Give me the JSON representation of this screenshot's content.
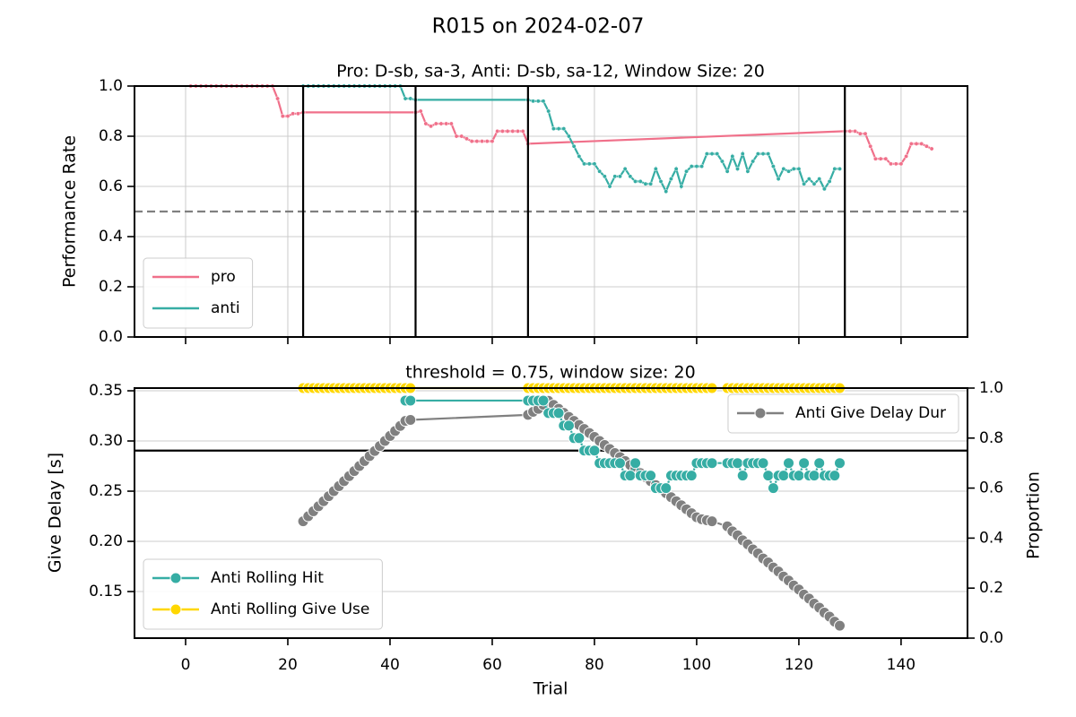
{
  "title": "R015 on 2024-02-07",
  "chart_data": [
    {
      "type": "line",
      "title": "Pro: D-sb, sa-3, Anti: D-sb, sa-12, Window Size: 20",
      "ylabel": "Performance Rate",
      "xlim": [
        -10,
        153
      ],
      "ylim": [
        0,
        1
      ],
      "yticks": [
        {
          "value": 0,
          "label": "0.0"
        },
        0.2,
        0.4,
        0.6,
        0.8,
        {
          "value": 1,
          "label": "1.0"
        }
      ],
      "grid": "both",
      "hline": {
        "value": 0.5,
        "style": "dashed",
        "color": "#808080"
      },
      "vlines": [
        23,
        45,
        67,
        129
      ],
      "vline_color": "#000000",
      "series": [
        {
          "name": "pro",
          "color": "#f0708a",
          "legend_loc": "lower left",
          "x": [
            1,
            2,
            3,
            4,
            5,
            6,
            7,
            8,
            9,
            10,
            11,
            12,
            13,
            14,
            15,
            16,
            17,
            18,
            19,
            20,
            21,
            22,
            23,
            45,
            46,
            47,
            48,
            49,
            50,
            51,
            52,
            53,
            54,
            55,
            56,
            57,
            58,
            59,
            60,
            61,
            62,
            63,
            64,
            65,
            66,
            67,
            129,
            130,
            131,
            132,
            133,
            134,
            135,
            136,
            137,
            138,
            139,
            140,
            141,
            142,
            143,
            144,
            145,
            146
          ],
          "values": [
            1,
            1,
            1,
            1,
            1,
            1,
            1,
            1,
            1,
            1,
            1,
            1,
            1,
            1,
            1,
            1,
            1,
            0.95,
            0.88,
            0.88,
            0.89,
            0.89,
            0.895,
            0.895,
            0.9,
            0.85,
            0.84,
            0.85,
            0.85,
            0.85,
            0.85,
            0.8,
            0.8,
            0.79,
            0.78,
            0.78,
            0.78,
            0.78,
            0.78,
            0.82,
            0.82,
            0.82,
            0.82,
            0.82,
            0.82,
            0.77,
            0.82,
            0.82,
            0.82,
            0.81,
            0.81,
            0.76,
            0.71,
            0.71,
            0.71,
            0.69,
            0.69,
            0.69,
            0.72,
            0.77,
            0.77,
            0.77,
            0.76,
            0.75
          ]
        },
        {
          "name": "anti",
          "color": "#36ada4",
          "legend_loc": "lower left",
          "x": [
            23,
            24,
            25,
            26,
            27,
            28,
            29,
            30,
            31,
            32,
            33,
            34,
            35,
            36,
            37,
            38,
            39,
            40,
            41,
            42,
            43,
            44,
            45,
            67,
            68,
            69,
            70,
            71,
            72,
            73,
            74,
            75,
            76,
            77,
            78,
            79,
            80,
            81,
            82,
            83,
            84,
            85,
            86,
            87,
            88,
            89,
            90,
            91,
            92,
            93,
            94,
            95,
            96,
            97,
            98,
            99,
            100,
            101,
            102,
            103,
            104,
            105,
            106,
            107,
            108,
            109,
            110,
            111,
            112,
            113,
            114,
            115,
            116,
            117,
            118,
            119,
            120,
            121,
            122,
            123,
            124,
            125,
            126,
            127,
            128
          ],
          "values": [
            1,
            1,
            1,
            1,
            1,
            1,
            1,
            1,
            1,
            1,
            1,
            1,
            1,
            1,
            1,
            1,
            1,
            1,
            1,
            1,
            0.95,
            0.95,
            0.945,
            0.945,
            0.94,
            0.94,
            0.94,
            0.9,
            0.83,
            0.83,
            0.83,
            0.8,
            0.76,
            0.72,
            0.69,
            0.69,
            0.69,
            0.66,
            0.64,
            0.6,
            0.64,
            0.64,
            0.67,
            0.64,
            0.62,
            0.62,
            0.61,
            0.61,
            0.67,
            0.62,
            0.58,
            0.63,
            0.67,
            0.6,
            0.66,
            0.68,
            0.68,
            0.68,
            0.73,
            0.73,
            0.73,
            0.7,
            0.66,
            0.72,
            0.67,
            0.73,
            0.66,
            0.7,
            0.73,
            0.73,
            0.73,
            0.68,
            0.63,
            0.67,
            0.66,
            0.67,
            0.67,
            0.61,
            0.63,
            0.61,
            0.63,
            0.59,
            0.62,
            0.67,
            0.67
          ]
        }
      ]
    },
    {
      "type": "line",
      "title": "threshold = 0.75, window size: 20",
      "xlabel": "Trial",
      "ylabel": "Give Delay [s]",
      "y2label": "Proportion",
      "xlim": [
        -10,
        153
      ],
      "ylim": [
        0.1036,
        0.3527
      ],
      "y2lim": [
        0,
        1
      ],
      "xticks": [
        0,
        20,
        40,
        60,
        80,
        100,
        120,
        140
      ],
      "yticks": [
        0.15,
        {
          "value": 0.2,
          "label": "0.20"
        },
        0.25,
        {
          "value": 0.3,
          "label": "0.30"
        },
        0.35
      ],
      "y2ticks": [
        {
          "value": 0,
          "label": "0.0"
        },
        0.2,
        0.4,
        0.6,
        0.8,
        {
          "value": 1,
          "label": "1.0"
        }
      ],
      "grid": "y",
      "hline": {
        "value": 0.75,
        "axis": "y2",
        "style": "solid",
        "color": "#000000"
      },
      "series": [
        {
          "name": "Anti Give Delay Dur",
          "color": "#808080",
          "legend_loc": "upper right",
          "axis": "y",
          "x": [
            23,
            24,
            25,
            26,
            27,
            28,
            29,
            30,
            31,
            32,
            33,
            34,
            35,
            36,
            37,
            38,
            39,
            40,
            41,
            42,
            43,
            44,
            67,
            68,
            69,
            70,
            71,
            72,
            73,
            74,
            75,
            76,
            77,
            78,
            79,
            80,
            81,
            82,
            83,
            84,
            85,
            86,
            87,
            88,
            89,
            90,
            91,
            92,
            93,
            94,
            95,
            96,
            97,
            98,
            99,
            100,
            101,
            102,
            103,
            106,
            107,
            108,
            109,
            110,
            111,
            112,
            113,
            114,
            115,
            116,
            117,
            118,
            119,
            120,
            121,
            122,
            123,
            124,
            125,
            126,
            127,
            128
          ],
          "values": [
            0.22,
            0.225,
            0.23,
            0.235,
            0.24,
            0.245,
            0.25,
            0.255,
            0.26,
            0.265,
            0.27,
            0.275,
            0.28,
            0.285,
            0.29,
            0.295,
            0.3,
            0.305,
            0.31,
            0.315,
            0.32,
            0.321,
            0.326,
            0.329,
            0.332,
            0.336,
            0.34,
            0.336,
            0.332,
            0.328,
            0.324,
            0.32,
            0.316,
            0.312,
            0.308,
            0.304,
            0.3,
            0.296,
            0.292,
            0.288,
            0.284,
            0.28,
            0.276,
            0.272,
            0.268,
            0.264,
            0.26,
            0.256,
            0.252,
            0.248,
            0.244,
            0.24,
            0.236,
            0.232,
            0.228,
            0.224,
            0.222,
            0.221,
            0.22,
            0.215,
            0.21,
            0.206,
            0.201,
            0.197,
            0.192,
            0.188,
            0.183,
            0.179,
            0.174,
            0.17,
            0.165,
            0.161,
            0.156,
            0.152,
            0.147,
            0.143,
            0.138,
            0.134,
            0.129,
            0.125,
            0.12,
            0.116
          ]
        },
        {
          "name": "Anti Rolling Hit",
          "color": "#36ada4",
          "legend_loc": "lower left",
          "axis": "y2",
          "x": [
            43,
            44,
            67,
            68,
            69,
            70,
            71,
            72,
            73,
            74,
            75,
            76,
            77,
            78,
            79,
            80,
            81,
            82,
            83,
            84,
            85,
            86,
            87,
            88,
            89,
            90,
            91,
            92,
            93,
            94,
            95,
            96,
            97,
            98,
            99,
            100,
            101,
            102,
            103,
            106,
            107,
            108,
            109,
            110,
            111,
            112,
            113,
            114,
            115,
            116,
            117,
            118,
            119,
            120,
            121,
            122,
            123,
            124,
            125,
            126,
            127,
            128
          ],
          "values": [
            0.95,
            0.95,
            0.95,
            0.95,
            0.95,
            0.95,
            0.9,
            0.9,
            0.9,
            0.85,
            0.85,
            0.8,
            0.8,
            0.75,
            0.75,
            0.75,
            0.7,
            0.7,
            0.7,
            0.7,
            0.7,
            0.65,
            0.65,
            0.7,
            0.65,
            0.65,
            0.65,
            0.6,
            0.6,
            0.6,
            0.65,
            0.65,
            0.65,
            0.65,
            0.65,
            0.7,
            0.7,
            0.7,
            0.7,
            0.7,
            0.7,
            0.7,
            0.65,
            0.7,
            0.7,
            0.7,
            0.7,
            0.65,
            0.6,
            0.65,
            0.65,
            0.7,
            0.65,
            0.65,
            0.7,
            0.65,
            0.65,
            0.7,
            0.65,
            0.65,
            0.65,
            0.7
          ]
        },
        {
          "name": "Anti Rolling Give Use",
          "color": "#ffd700",
          "legend_loc": "lower left",
          "axis": "y2",
          "x": [
            23,
            24,
            25,
            26,
            27,
            28,
            29,
            30,
            31,
            32,
            33,
            34,
            35,
            36,
            37,
            38,
            39,
            40,
            41,
            42,
            43,
            44,
            67,
            68,
            69,
            70,
            71,
            72,
            73,
            74,
            75,
            76,
            77,
            78,
            79,
            80,
            81,
            82,
            83,
            84,
            85,
            86,
            87,
            88,
            89,
            90,
            91,
            92,
            93,
            94,
            95,
            96,
            97,
            98,
            99,
            100,
            101,
            102,
            103,
            106,
            107,
            108,
            109,
            110,
            111,
            112,
            113,
            114,
            115,
            116,
            117,
            118,
            119,
            120,
            121,
            122,
            123,
            124,
            125,
            126,
            127,
            128
          ],
          "values": [
            1,
            1,
            1,
            1,
            1,
            1,
            1,
            1,
            1,
            1,
            1,
            1,
            1,
            1,
            1,
            1,
            1,
            1,
            1,
            1,
            1,
            1,
            1,
            1,
            1,
            1,
            1,
            1,
            1,
            1,
            1,
            1,
            1,
            1,
            1,
            1,
            1,
            1,
            1,
            1,
            1,
            1,
            1,
            1,
            1,
            1,
            1,
            1,
            1,
            1,
            1,
            1,
            1,
            1,
            1,
            1,
            1,
            1,
            1,
            1,
            1,
            1,
            1,
            1,
            1,
            1,
            1,
            1,
            1,
            1,
            1,
            1,
            1,
            1,
            1,
            1,
            1,
            1,
            1,
            1,
            1,
            1
          ]
        }
      ]
    }
  ]
}
